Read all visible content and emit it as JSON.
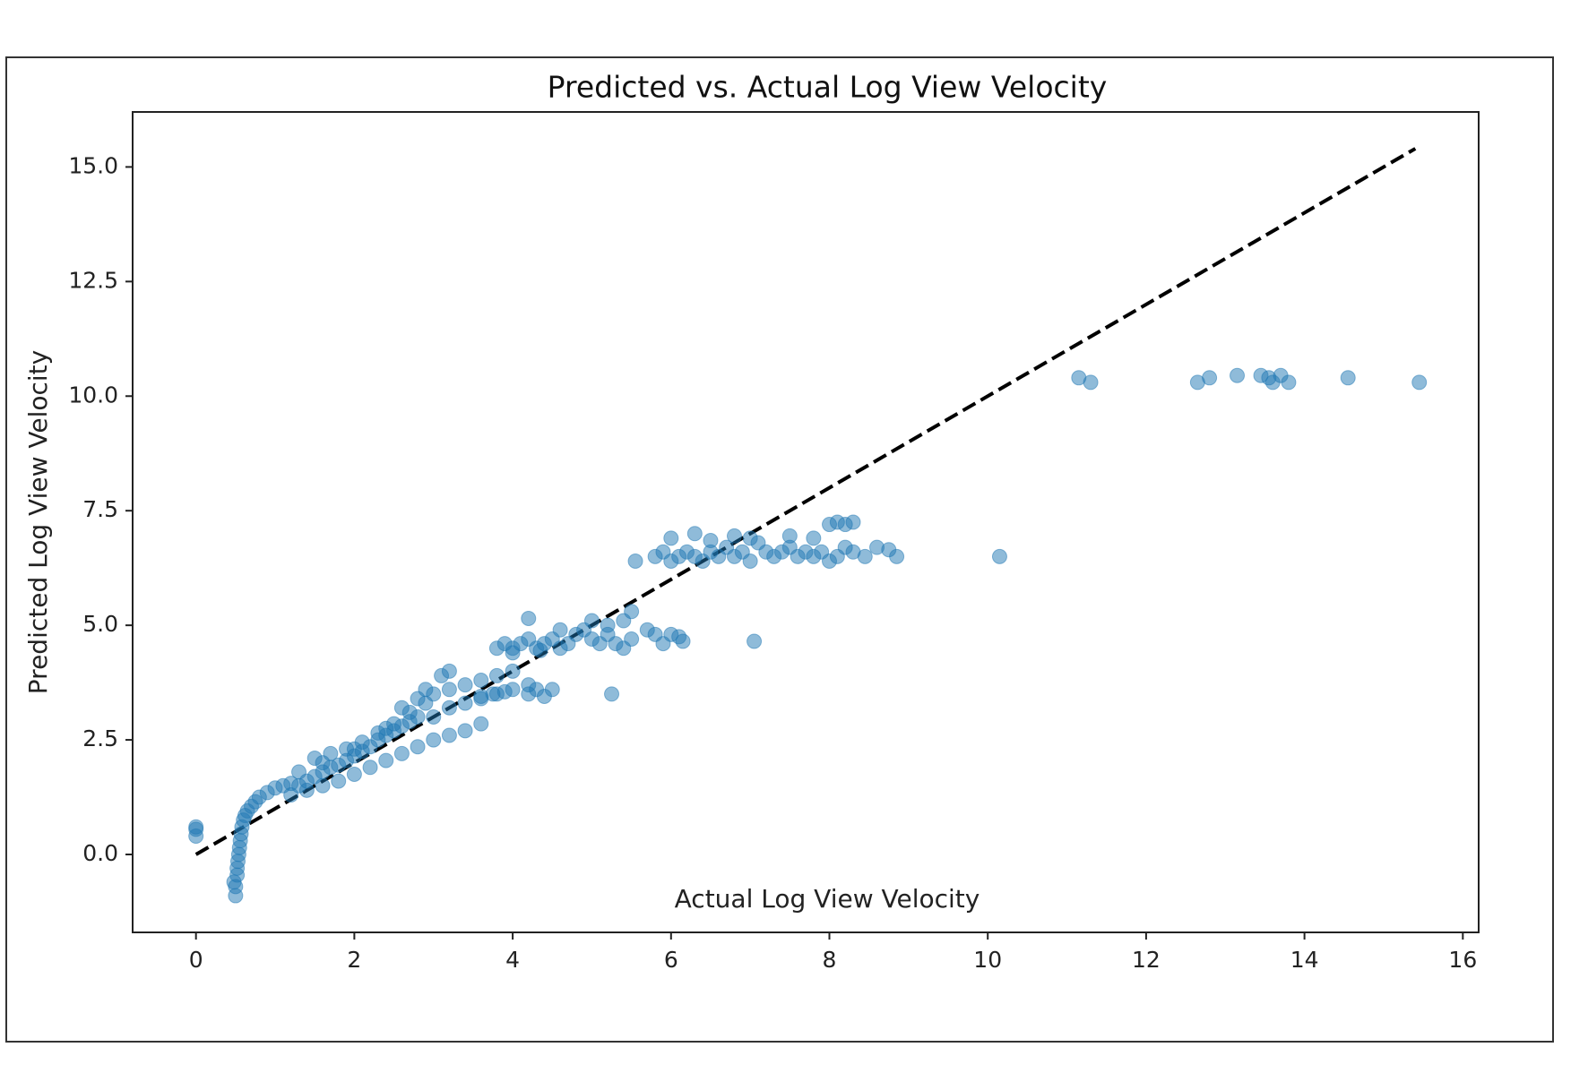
{
  "chart_data": {
    "type": "scatter",
    "title": "Predicted vs. Actual Log View Velocity",
    "xlabel": "Actual Log View Velocity",
    "ylabel": "Predicted Log View Velocity",
    "xlim": [
      -0.8,
      16.2
    ],
    "ylim": [
      -1.7,
      16.2
    ],
    "xticks": [
      0,
      2,
      4,
      6,
      8,
      10,
      12,
      14,
      16
    ],
    "xtick_labels": [
      "0",
      "2",
      "4",
      "6",
      "8",
      "10",
      "12",
      "14",
      "16"
    ],
    "yticks": [
      0.0,
      2.5,
      5.0,
      7.5,
      10.0,
      12.5,
      15.0
    ],
    "ytick_labels": [
      "0.0",
      "2.5",
      "5.0",
      "7.5",
      "10.0",
      "12.5",
      "15.0"
    ],
    "grid": false,
    "legend": "none",
    "marker_color": "#1f77b4",
    "marker_alpha": 0.5,
    "reference_line": {
      "style": "dashed",
      "color": "#000000",
      "x": [
        0,
        15.4
      ],
      "y": [
        0,
        15.4
      ]
    },
    "series": [
      {
        "points": [
          [
            0.0,
            0.4
          ],
          [
            0.0,
            0.55
          ],
          [
            0.0,
            0.6
          ],
          [
            0.48,
            -0.6
          ],
          [
            0.5,
            -0.9
          ],
          [
            0.5,
            -0.7
          ],
          [
            0.52,
            -0.45
          ],
          [
            0.52,
            -0.3
          ],
          [
            0.53,
            -0.15
          ],
          [
            0.54,
            0.0
          ],
          [
            0.55,
            0.15
          ],
          [
            0.56,
            0.3
          ],
          [
            0.57,
            0.45
          ],
          [
            0.58,
            0.6
          ],
          [
            0.6,
            0.75
          ],
          [
            0.62,
            0.85
          ],
          [
            0.65,
            0.95
          ],
          [
            0.7,
            1.05
          ],
          [
            0.75,
            1.15
          ],
          [
            0.8,
            1.25
          ],
          [
            0.9,
            1.35
          ],
          [
            1.0,
            1.45
          ],
          [
            1.1,
            1.5
          ],
          [
            1.2,
            1.55
          ],
          [
            1.3,
            1.5
          ],
          [
            1.4,
            1.6
          ],
          [
            1.5,
            1.7
          ],
          [
            1.6,
            1.8
          ],
          [
            1.7,
            1.9
          ],
          [
            1.8,
            1.95
          ],
          [
            1.9,
            2.05
          ],
          [
            2.0,
            2.15
          ],
          [
            2.1,
            2.25
          ],
          [
            2.2,
            2.35
          ],
          [
            2.3,
            2.5
          ],
          [
            2.4,
            2.6
          ],
          [
            2.5,
            2.7
          ],
          [
            2.6,
            2.8
          ],
          [
            2.7,
            2.9
          ],
          [
            2.8,
            3.0
          ],
          [
            1.2,
            1.3
          ],
          [
            1.4,
            1.4
          ],
          [
            1.6,
            1.5
          ],
          [
            1.8,
            1.6
          ],
          [
            2.0,
            1.75
          ],
          [
            2.2,
            1.9
          ],
          [
            2.4,
            2.05
          ],
          [
            2.6,
            2.2
          ],
          [
            2.8,
            2.35
          ],
          [
            3.0,
            2.5
          ],
          [
            3.2,
            2.6
          ],
          [
            3.4,
            2.7
          ],
          [
            3.6,
            2.85
          ],
          [
            1.5,
            2.1
          ],
          [
            1.7,
            2.2
          ],
          [
            1.9,
            2.3
          ],
          [
            2.1,
            2.45
          ],
          [
            2.3,
            2.65
          ],
          [
            2.5,
            2.85
          ],
          [
            2.7,
            3.1
          ],
          [
            2.9,
            3.3
          ],
          [
            1.3,
            1.8
          ],
          [
            1.6,
            2.0
          ],
          [
            2.0,
            2.3
          ],
          [
            2.4,
            2.75
          ],
          [
            2.6,
            3.2
          ],
          [
            3.0,
            3.0
          ],
          [
            3.2,
            3.2
          ],
          [
            3.4,
            3.3
          ],
          [
            3.6,
            3.4
          ],
          [
            3.8,
            3.5
          ],
          [
            4.0,
            3.6
          ],
          [
            4.2,
            3.7
          ],
          [
            3.0,
            3.5
          ],
          [
            3.2,
            3.6
          ],
          [
            3.4,
            3.7
          ],
          [
            3.6,
            3.8
          ],
          [
            3.8,
            3.9
          ],
          [
            4.0,
            4.0
          ],
          [
            3.1,
            3.9
          ],
          [
            3.2,
            4.0
          ],
          [
            2.8,
            3.4
          ],
          [
            2.9,
            3.6
          ],
          [
            4.3,
            3.6
          ],
          [
            4.5,
            3.6
          ],
          [
            4.2,
            3.5
          ],
          [
            4.4,
            3.45
          ],
          [
            5.25,
            3.5
          ],
          [
            3.75,
            3.5
          ],
          [
            3.6,
            3.45
          ],
          [
            3.9,
            3.55
          ],
          [
            3.8,
            4.5
          ],
          [
            3.9,
            4.6
          ],
          [
            4.0,
            4.5
          ],
          [
            4.1,
            4.6
          ],
          [
            4.2,
            4.7
          ],
          [
            4.3,
            4.5
          ],
          [
            4.4,
            4.6
          ],
          [
            4.5,
            4.7
          ],
          [
            4.6,
            4.5
          ],
          [
            4.7,
            4.6
          ],
          [
            4.8,
            4.8
          ],
          [
            4.9,
            4.9
          ],
          [
            5.0,
            4.7
          ],
          [
            5.1,
            4.6
          ],
          [
            5.2,
            4.8
          ],
          [
            5.3,
            4.6
          ],
          [
            5.4,
            4.5
          ],
          [
            5.5,
            4.7
          ],
          [
            4.2,
            5.15
          ],
          [
            4.6,
            4.9
          ],
          [
            5.4,
            5.1
          ],
          [
            5.5,
            5.3
          ],
          [
            5.7,
            4.9
          ],
          [
            5.8,
            4.8
          ],
          [
            5.9,
            4.6
          ],
          [
            6.0,
            4.8
          ],
          [
            6.1,
            4.75
          ],
          [
            6.15,
            4.65
          ],
          [
            7.05,
            4.65
          ],
          [
            5.0,
            5.1
          ],
          [
            5.2,
            5.0
          ],
          [
            4.0,
            4.4
          ],
          [
            4.35,
            4.45
          ],
          [
            5.55,
            6.4
          ],
          [
            5.8,
            6.5
          ],
          [
            5.9,
            6.6
          ],
          [
            6.0,
            6.4
          ],
          [
            6.1,
            6.5
          ],
          [
            6.2,
            6.6
          ],
          [
            6.3,
            6.5
          ],
          [
            6.4,
            6.4
          ],
          [
            6.5,
            6.6
          ],
          [
            6.6,
            6.5
          ],
          [
            6.7,
            6.7
          ],
          [
            6.8,
            6.5
          ],
          [
            6.9,
            6.6
          ],
          [
            7.0,
            6.4
          ],
          [
            7.1,
            6.8
          ],
          [
            7.2,
            6.6
          ],
          [
            7.3,
            6.5
          ],
          [
            7.4,
            6.6
          ],
          [
            7.5,
            6.7
          ],
          [
            7.6,
            6.5
          ],
          [
            7.7,
            6.6
          ],
          [
            7.8,
            6.5
          ],
          [
            7.9,
            6.6
          ],
          [
            8.0,
            6.4
          ],
          [
            8.1,
            6.5
          ],
          [
            8.2,
            6.7
          ],
          [
            8.3,
            6.6
          ],
          [
            8.45,
            6.5
          ],
          [
            8.75,
            6.65
          ],
          [
            8.85,
            6.5
          ],
          [
            10.15,
            6.5
          ],
          [
            6.0,
            6.9
          ],
          [
            6.3,
            7.0
          ],
          [
            6.8,
            6.95
          ],
          [
            7.0,
            6.9
          ],
          [
            7.5,
            6.95
          ],
          [
            8.0,
            7.2
          ],
          [
            8.1,
            7.25
          ],
          [
            8.2,
            7.2
          ],
          [
            8.3,
            7.25
          ],
          [
            7.8,
            6.9
          ],
          [
            6.5,
            6.85
          ],
          [
            8.6,
            6.7
          ],
          [
            11.15,
            10.4
          ],
          [
            11.3,
            10.3
          ],
          [
            12.65,
            10.3
          ],
          [
            12.8,
            10.4
          ],
          [
            13.15,
            10.45
          ],
          [
            13.45,
            10.45
          ],
          [
            13.55,
            10.4
          ],
          [
            13.6,
            10.3
          ],
          [
            13.7,
            10.45
          ],
          [
            13.8,
            10.3
          ],
          [
            14.55,
            10.4
          ],
          [
            15.45,
            10.3
          ]
        ]
      }
    ]
  }
}
